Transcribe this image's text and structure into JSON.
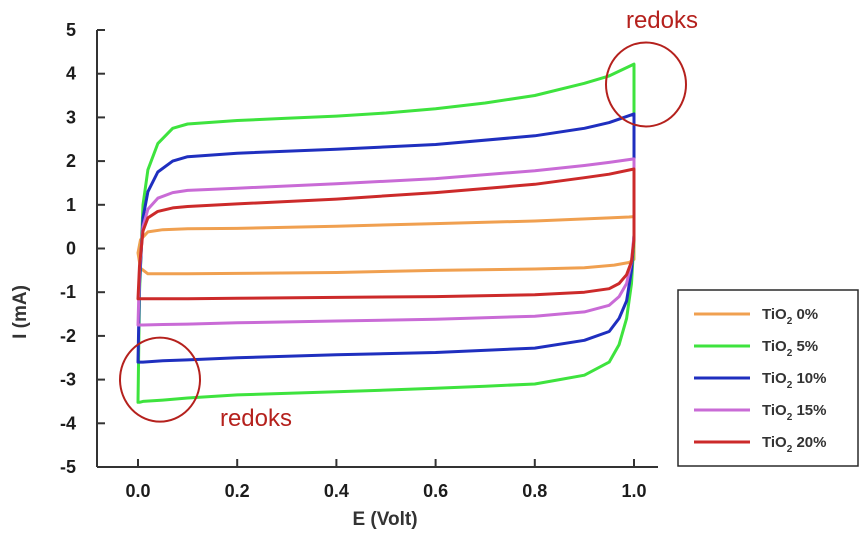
{
  "chart_data": {
    "type": "line",
    "title": "",
    "xlabel": "E (Volt)",
    "ylabel": "I (mA)",
    "xlim": [
      -0.08,
      1.08
    ],
    "ylim": [
      -5,
      5
    ],
    "x_ticks": [
      0.0,
      0.2,
      0.4,
      0.6,
      0.8,
      1.0
    ],
    "x_tick_labels": [
      "0.0",
      "0.2",
      "0.4",
      "0.6",
      "0.8",
      "1.0"
    ],
    "y_ticks": [
      5,
      4,
      3,
      2,
      1,
      0,
      -1,
      -2,
      -3,
      -4,
      -5
    ],
    "y_tick_labels": [
      "5",
      "4",
      "3",
      "2",
      "1",
      "0",
      "-1",
      "-2",
      "-3",
      "-4",
      "-5"
    ],
    "grid": false,
    "legend_position": "bottom-right",
    "series": [
      {
        "name": "TiO2 0%",
        "name_base": "TiO",
        "name_sub": "2",
        "name_rest": " 0%",
        "color": "#f0a050",
        "x": [
          0.0,
          0.005,
          0.02,
          0.05,
          0.1,
          0.2,
          0.4,
          0.6,
          0.8,
          0.95,
          0.99,
          1.0,
          1.0,
          0.99,
          0.96,
          0.9,
          0.8,
          0.6,
          0.4,
          0.2,
          0.1,
          0.02,
          0.005,
          0.0
        ],
        "y": [
          -0.1,
          0.2,
          0.38,
          0.43,
          0.45,
          0.46,
          0.51,
          0.57,
          0.63,
          0.7,
          0.72,
          0.73,
          -0.25,
          -0.32,
          -0.38,
          -0.44,
          -0.47,
          -0.5,
          -0.55,
          -0.57,
          -0.58,
          -0.58,
          -0.45,
          -0.1
        ]
      },
      {
        "name": "TiO2 5%",
        "name_base": "TiO",
        "name_sub": "2",
        "name_rest": " 5%",
        "color": "#3ee33e",
        "x": [
          0.0,
          0.003,
          0.01,
          0.02,
          0.04,
          0.07,
          0.1,
          0.2,
          0.3,
          0.4,
          0.5,
          0.6,
          0.7,
          0.8,
          0.9,
          0.95,
          1.0,
          1.0,
          0.995,
          0.985,
          0.97,
          0.95,
          0.9,
          0.85,
          0.8,
          0.7,
          0.6,
          0.4,
          0.2,
          0.1,
          0.05,
          0.01,
          0.003,
          0.0
        ],
        "y": [
          -3.52,
          -1.0,
          1.0,
          1.8,
          2.4,
          2.75,
          2.85,
          2.93,
          2.98,
          3.03,
          3.1,
          3.2,
          3.33,
          3.5,
          3.78,
          3.95,
          4.22,
          0.2,
          -0.8,
          -1.6,
          -2.2,
          -2.6,
          -2.9,
          -3.0,
          -3.1,
          -3.15,
          -3.2,
          -3.28,
          -3.35,
          -3.42,
          -3.47,
          -3.5,
          -3.52,
          -3.52
        ]
      },
      {
        "name": "TiO2 10%",
        "name_base": "TiO",
        "name_sub": "2",
        "name_rest": " 10%",
        "color": "#1f2fbf",
        "x": [
          0.0,
          0.003,
          0.01,
          0.02,
          0.04,
          0.07,
          0.1,
          0.2,
          0.4,
          0.6,
          0.8,
          0.9,
          0.95,
          1.0,
          1.0,
          0.995,
          0.985,
          0.97,
          0.95,
          0.9,
          0.8,
          0.6,
          0.4,
          0.2,
          0.1,
          0.05,
          0.01,
          0.0
        ],
        "y": [
          -2.6,
          -0.8,
          0.7,
          1.3,
          1.75,
          2.0,
          2.1,
          2.18,
          2.27,
          2.38,
          2.58,
          2.75,
          2.88,
          3.08,
          0.3,
          -0.5,
          -1.2,
          -1.6,
          -1.9,
          -2.1,
          -2.28,
          -2.38,
          -2.43,
          -2.5,
          -2.55,
          -2.57,
          -2.6,
          -2.6
        ]
      },
      {
        "name": "TiO2 15%",
        "name_base": "TiO",
        "name_sub": "2",
        "name_rest": " 15%",
        "color": "#c96bd6",
        "x": [
          0.0,
          0.003,
          0.01,
          0.02,
          0.04,
          0.07,
          0.1,
          0.2,
          0.4,
          0.6,
          0.8,
          0.9,
          0.95,
          1.0,
          1.0,
          0.995,
          0.985,
          0.97,
          0.95,
          0.9,
          0.8,
          0.6,
          0.4,
          0.2,
          0.1,
          0.05,
          0.01,
          0.0
        ],
        "y": [
          -1.75,
          -0.5,
          0.5,
          0.9,
          1.15,
          1.28,
          1.33,
          1.38,
          1.48,
          1.6,
          1.78,
          1.9,
          1.97,
          2.05,
          0.3,
          -0.3,
          -0.8,
          -1.1,
          -1.3,
          -1.45,
          -1.55,
          -1.62,
          -1.66,
          -1.7,
          -1.73,
          -1.74,
          -1.75,
          -1.75
        ]
      },
      {
        "name": "TiO2 20%",
        "name_base": "TiO",
        "name_sub": "2",
        "name_rest": " 20%",
        "color": "#cc2a2a",
        "x": [
          0.0,
          0.003,
          0.01,
          0.02,
          0.04,
          0.07,
          0.1,
          0.2,
          0.4,
          0.6,
          0.8,
          0.9,
          0.95,
          1.0,
          1.0,
          0.995,
          0.985,
          0.97,
          0.95,
          0.9,
          0.8,
          0.6,
          0.4,
          0.2,
          0.1,
          0.05,
          0.01,
          0.0
        ],
        "y": [
          -1.15,
          -0.4,
          0.4,
          0.7,
          0.85,
          0.93,
          0.96,
          1.02,
          1.13,
          1.28,
          1.47,
          1.62,
          1.7,
          1.82,
          0.2,
          -0.3,
          -0.6,
          -0.8,
          -0.92,
          -1.0,
          -1.06,
          -1.1,
          -1.12,
          -1.14,
          -1.15,
          -1.15,
          -1.15,
          -1.15
        ]
      }
    ],
    "annotations": [
      {
        "text": "redoks",
        "anchor": "top-right",
        "x": 1.0,
        "y": 3.8
      },
      {
        "text": "redoks",
        "anchor": "bottom-left",
        "x": 0.0,
        "y": -3.0
      }
    ]
  }
}
